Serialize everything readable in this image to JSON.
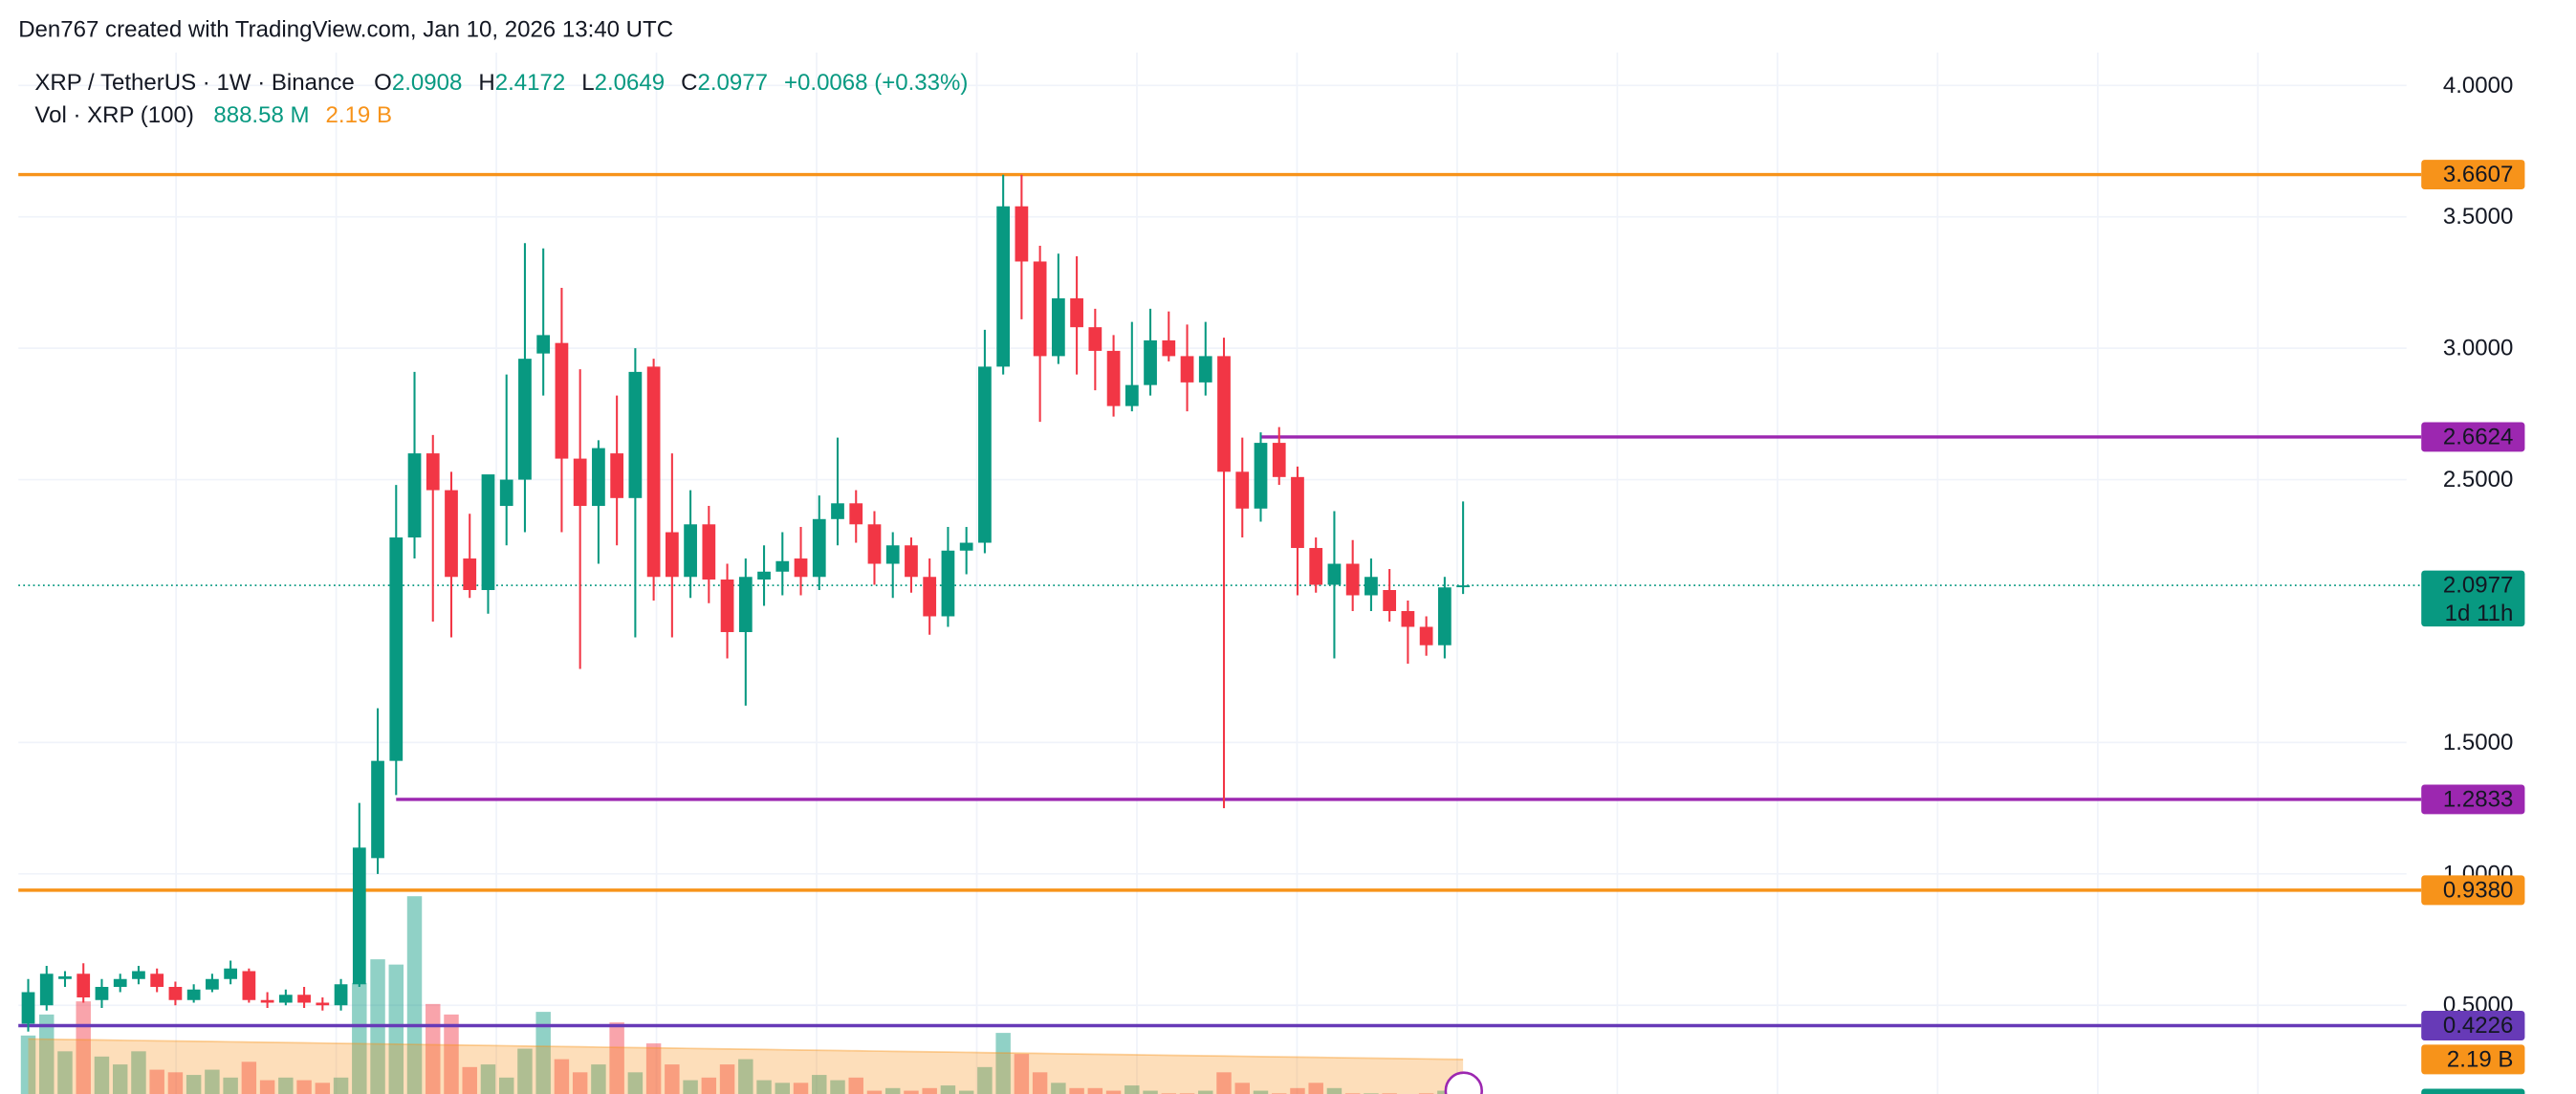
{
  "header": "Den767 created with TradingView.com, Jan 10, 2026 13:40 UTC",
  "chart_data": {
    "type": "candlestick",
    "title": "XRP / TetherUS · 1W · Binance",
    "legend": {
      "o_label": "O",
      "o": "2.0908",
      "h_label": "H",
      "h": "2.4172",
      "l_label": "L",
      "l": "2.0649",
      "c_label": "C",
      "c": "2.0977",
      "change": "+0.0068 (+0.33%)"
    },
    "open": [
      0.43,
      0.5,
      0.6,
      0.62,
      0.52,
      0.57,
      0.6,
      0.62,
      0.57,
      0.52,
      0.56,
      0.6,
      0.63,
      0.52,
      0.51,
      0.54,
      0.51,
      0.5,
      0.58,
      1.06,
      1.43,
      2.28,
      2.6,
      2.46,
      2.2,
      2.08,
      2.4,
      2.5,
      2.98,
      3.02,
      2.58,
      2.4,
      2.6,
      2.43,
      2.93,
      2.3,
      2.13,
      2.33,
      2.12,
      1.92,
      2.12,
      2.15,
      2.2,
      2.13,
      2.35,
      2.41,
      2.33,
      2.18,
      2.25,
      2.13,
      1.98,
      2.23,
      2.26,
      2.93,
      3.54,
      3.33,
      2.97,
      3.19,
      3.08,
      2.99,
      2.78,
      2.86,
      3.03,
      2.97,
      2.87,
      2.97,
      2.53,
      2.39,
      2.64,
      2.51,
      2.24,
      2.1,
      2.18,
      2.06,
      2.08,
      2.0,
      1.94,
      1.87,
      2.0908
    ],
    "high": [
      0.6,
      0.65,
      0.63,
      0.66,
      0.6,
      0.62,
      0.65,
      0.64,
      0.59,
      0.58,
      0.62,
      0.67,
      0.64,
      0.55,
      0.56,
      0.57,
      0.53,
      0.6,
      1.27,
      1.63,
      2.48,
      2.91,
      2.67,
      2.53,
      2.37,
      2.51,
      2.9,
      3.4,
      3.38,
      3.23,
      2.92,
      2.65,
      2.82,
      3.0,
      2.96,
      2.6,
      2.46,
      2.4,
      2.18,
      2.2,
      2.25,
      2.3,
      2.32,
      2.44,
      2.66,
      2.46,
      2.38,
      2.3,
      2.28,
      2.2,
      2.32,
      2.32,
      3.07,
      3.66,
      3.66,
      3.39,
      3.36,
      3.35,
      3.15,
      3.05,
      3.1,
      3.15,
      3.14,
      3.09,
      3.1,
      3.04,
      2.66,
      2.68,
      2.7,
      2.55,
      2.28,
      2.38,
      2.27,
      2.2,
      2.16,
      2.04,
      1.98,
      2.13,
      2.4172
    ],
    "low": [
      0.4,
      0.48,
      0.57,
      0.51,
      0.49,
      0.55,
      0.58,
      0.55,
      0.5,
      0.51,
      0.55,
      0.58,
      0.51,
      0.49,
      0.5,
      0.49,
      0.48,
      0.48,
      0.57,
      1.0,
      1.3,
      2.2,
      1.96,
      1.9,
      2.05,
      1.99,
      2.25,
      2.3,
      2.82,
      2.3,
      1.78,
      2.18,
      2.25,
      1.9,
      2.04,
      1.9,
      2.05,
      2.03,
      1.82,
      1.64,
      2.02,
      2.06,
      2.06,
      2.08,
      2.25,
      2.26,
      2.1,
      2.05,
      2.07,
      1.91,
      1.94,
      2.14,
      2.22,
      2.9,
      3.11,
      2.72,
      2.94,
      2.9,
      2.84,
      2.74,
      2.76,
      2.82,
      2.95,
      2.76,
      2.82,
      1.25,
      2.28,
      2.34,
      2.48,
      2.06,
      2.07,
      1.82,
      2.0,
      2.0,
      1.96,
      1.8,
      1.83,
      1.82,
      2.0649
    ],
    "close": [
      0.55,
      0.62,
      0.61,
      0.53,
      0.57,
      0.6,
      0.63,
      0.57,
      0.52,
      0.56,
      0.6,
      0.64,
      0.52,
      0.51,
      0.54,
      0.51,
      0.5,
      0.58,
      1.1,
      1.43,
      2.28,
      2.6,
      2.46,
      2.13,
      2.08,
      2.52,
      2.5,
      2.96,
      3.05,
      2.58,
      2.4,
      2.62,
      2.43,
      2.91,
      2.13,
      2.13,
      2.33,
      2.12,
      1.92,
      2.13,
      2.15,
      2.19,
      2.13,
      2.35,
      2.41,
      2.33,
      2.18,
      2.25,
      2.13,
      1.98,
      2.23,
      2.26,
      2.93,
      3.54,
      3.33,
      2.97,
      3.19,
      3.08,
      2.99,
      2.78,
      2.86,
      3.03,
      2.97,
      2.87,
      2.97,
      2.53,
      2.39,
      2.64,
      2.51,
      2.24,
      2.1,
      2.18,
      2.06,
      2.13,
      2.0,
      1.94,
      1.87,
      2.09,
      2.0977
    ],
    "up_color": "#089981",
    "down_color": "#f23645",
    "ylim": [
      0.1625,
      4.125
    ],
    "yticks": [
      {
        "value": 0.5,
        "label": "0.5000"
      },
      {
        "value": 1,
        "label": "1.0000"
      },
      {
        "value": 1.5,
        "label": "1.5000"
      },
      {
        "value": 2.5,
        "label": "2.5000"
      },
      {
        "value": 3,
        "label": "3.0000"
      },
      {
        "value": 3.5,
        "label": "3.5000"
      },
      {
        "value": 4,
        "label": "4.0000"
      }
    ],
    "grid": true,
    "last_price": 2.0977,
    "countdown": "1d 11h",
    "levels": [
      {
        "value": 3.6607,
        "label": "3.6607",
        "color": "#f7931a"
      },
      {
        "value": 2.6624,
        "label": "2.6624",
        "color": "#9c27b0",
        "start": 67
      },
      {
        "value": 1.2833,
        "label": "1.2833",
        "color": "#9c27b0",
        "start": 20
      },
      {
        "value": 0.938,
        "label": "0.9380",
        "color": "#f7931a"
      },
      {
        "value": 0.4226,
        "label": "0.4226",
        "color": "#673ab7"
      }
    ],
    "volume": {
      "title": "Vol · XRP (100)",
      "last_label": "888.58 M",
      "ma_label": "2.19 B",
      "ma_color": "#f7931a",
      "values": [
        3100,
        3900,
        2500,
        4400,
        2300,
        2000,
        2500,
        1800,
        1700,
        1600,
        1800,
        1500,
        2100,
        1400,
        1500,
        1400,
        1300,
        1500,
        5100,
        6000,
        5800,
        8400,
        4300,
        3900,
        1900,
        2000,
        1500,
        2600,
        4000,
        2200,
        1700,
        2000,
        3600,
        1700,
        2800,
        2000,
        1400,
        1500,
        2000,
        2200,
        1400,
        1300,
        1300,
        1600,
        1400,
        1500,
        1000,
        1100,
        1000,
        1100,
        1200,
        1000,
        1900,
        3200,
        2400,
        1700,
        1300,
        1100,
        1100,
        1000,
        1200,
        1000,
        900,
        900,
        1000,
        1700,
        1300,
        1000,
        900,
        1100,
        1300,
        1100,
        900,
        900,
        900,
        800,
        900,
        1000,
        888.58
      ],
      "ma": [
        2970,
        2960,
        2950,
        2940,
        2930,
        2920,
        2910,
        2900,
        2890,
        2880,
        2870,
        2860,
        2850,
        2840,
        2830,
        2820,
        2810,
        2800,
        2790,
        2780,
        2770,
        2760,
        2750,
        2740,
        2730,
        2720,
        2710,
        2700,
        2690,
        2680,
        2670,
        2660,
        2650,
        2640,
        2630,
        2620,
        2610,
        2600,
        2590,
        2580,
        2570,
        2560,
        2550,
        2540,
        2530,
        2520,
        2510,
        2500,
        2490,
        2480,
        2470,
        2460,
        2450,
        2440,
        2430,
        2420,
        2410,
        2400,
        2390,
        2380,
        2370,
        2360,
        2350,
        2340,
        2330,
        2320,
        2310,
        2300,
        2290,
        2280,
        2270,
        2260,
        2250,
        2240,
        2230,
        2220,
        2210,
        2200,
        2190
      ]
    }
  }
}
